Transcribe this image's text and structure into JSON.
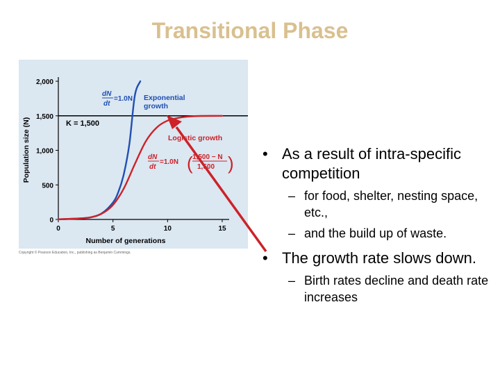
{
  "slide": {
    "title": "Transitional Phase",
    "credit": "Copyright © Pearson Education, Inc., publishing as Benjamin Cummings."
  },
  "bullets": [
    {
      "text": "As a result of intra-specific competition",
      "subs": [
        "for food, shelter, nesting space, etc.,",
        "and the build up of waste."
      ]
    },
    {
      "text": "The growth rate slows down.",
      "subs": [
        "Birth rates decline and death rate increases"
      ]
    }
  ],
  "chart_data": {
    "type": "line",
    "xlabel": "Number of generations",
    "ylabel": "Population size (N)",
    "xlim": [
      0,
      15
    ],
    "ylim": [
      0,
      2000
    ],
    "xticks": [
      0,
      5,
      10,
      15
    ],
    "yticks": [
      0,
      500,
      1000,
      1500,
      2000
    ],
    "ytick_labels": [
      "0",
      "500",
      "1,000",
      "1,500",
      "2,000"
    ],
    "carrying_capacity": {
      "value": 1500,
      "label": "K = 1,500"
    },
    "series": [
      {
        "name": "Exponential growth",
        "color": "#1f4fb3",
        "equation": {
          "lhs_num": "dN",
          "lhs_den": "dt",
          "rhs": "=1.0N"
        },
        "x": [
          0,
          2,
          3,
          4,
          5,
          5.5,
          6,
          6.5,
          7,
          7.5
        ],
        "y": [
          2,
          15,
          32,
          90,
          245,
          400,
          660,
          1090,
          1790,
          2000
        ]
      },
      {
        "name": "Logistic growth",
        "color": "#cc2229",
        "equation": {
          "lhs_num": "dN",
          "lhs_den": "dt",
          "rhs": "=1.0N",
          "frac_num": "1,500 − N",
          "frac_den": "1,500"
        },
        "x": [
          0,
          2,
          3,
          4,
          5,
          6,
          7,
          8,
          9,
          10,
          11,
          12,
          13,
          15
        ],
        "y": [
          2,
          15,
          32,
          85,
          210,
          450,
          800,
          1130,
          1330,
          1430,
          1470,
          1490,
          1497,
          1500
        ]
      }
    ],
    "arrow_color": "#cc2229",
    "grid": false,
    "background": "#dbe7f1"
  }
}
